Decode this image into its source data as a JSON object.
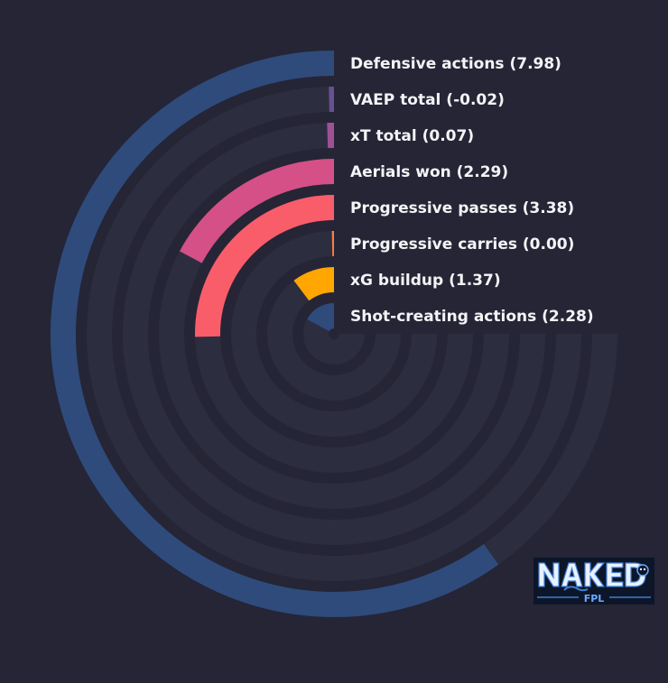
{
  "chart_data": {
    "type": "radial_bar",
    "title": "",
    "max_value": 10,
    "sweep_degrees": 270,
    "colors": {
      "background": "#252536",
      "track": "#2d2d40"
    },
    "series": [
      {
        "label": "Defensive actions (7.98)",
        "metric": "Defensive actions",
        "value": 7.98,
        "color": "#2f4b7c"
      },
      {
        "label": "VAEP total (-0.02)",
        "metric": "VAEP total",
        "value": -0.02,
        "color": "#665191"
      },
      {
        "label": "xT total (0.07)",
        "metric": "xT total",
        "value": 0.07,
        "color": "#a05195"
      },
      {
        "label": "Aerials won (2.29)",
        "metric": "Aerials won",
        "value": 2.29,
        "color": "#d45087"
      },
      {
        "label": "Progressive passes (3.38)",
        "metric": "Progressive passes",
        "value": 3.38,
        "color": "#f95d6a"
      },
      {
        "label": "Progressive carries (0.00)",
        "metric": "Progressive carries",
        "value": 0.0,
        "color": "#ff7c43"
      },
      {
        "label": "xG buildup (1.37)",
        "metric": "xG buildup",
        "value": 1.37,
        "color": "#ffa600"
      },
      {
        "label": "Shot-creating actions (2.28)",
        "metric": "Shot-creating actions",
        "value": 2.28,
        "color": "#2f4b7c"
      }
    ]
  },
  "logo": {
    "text_main": "NAKED",
    "text_sub": "FPL"
  }
}
